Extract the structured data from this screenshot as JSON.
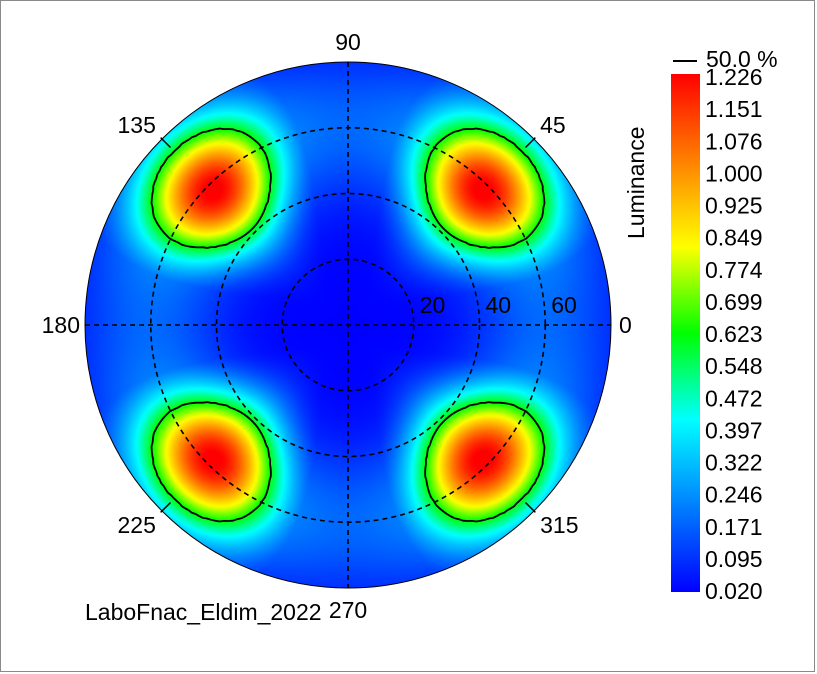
{
  "chart_data": {
    "type": "heatmap",
    "subtype": "polar-conoscopic",
    "footer": "LaboFnac_Eldim_2022",
    "colorbar": {
      "title": "Luminance",
      "contour_legend": "50.0 %",
      "ticks": [
        "1.226",
        "1.151",
        "1.076",
        "1.000",
        "0.925",
        "0.849",
        "0.774",
        "0.699",
        "0.623",
        "0.548",
        "0.472",
        "0.397",
        "0.322",
        "0.246",
        "0.171",
        "0.095",
        "0.020"
      ],
      "min": 0.02,
      "max": 1.226,
      "colors": [
        "#0000ff",
        "#0080ff",
        "#00ffff",
        "#00ff00",
        "#ffff00",
        "#ff8000",
        "#ff0000"
      ]
    },
    "azimuth_labels": [
      "0",
      "45",
      "90",
      "135",
      "180",
      "225",
      "270",
      "315"
    ],
    "radial_labels": [
      "20",
      "40",
      "60"
    ],
    "radial_max": 80,
    "lobes": [
      {
        "azimuth": 45,
        "theta": 58,
        "peak": 1.226
      },
      {
        "azimuth": 135,
        "theta": 58,
        "peak": 1.226
      },
      {
        "azimuth": 225,
        "theta": 58,
        "peak": 1.226
      },
      {
        "azimuth": 315,
        "theta": 58,
        "peak": 1.226
      }
    ],
    "contour_level_fraction": 0.5,
    "grid": true
  }
}
